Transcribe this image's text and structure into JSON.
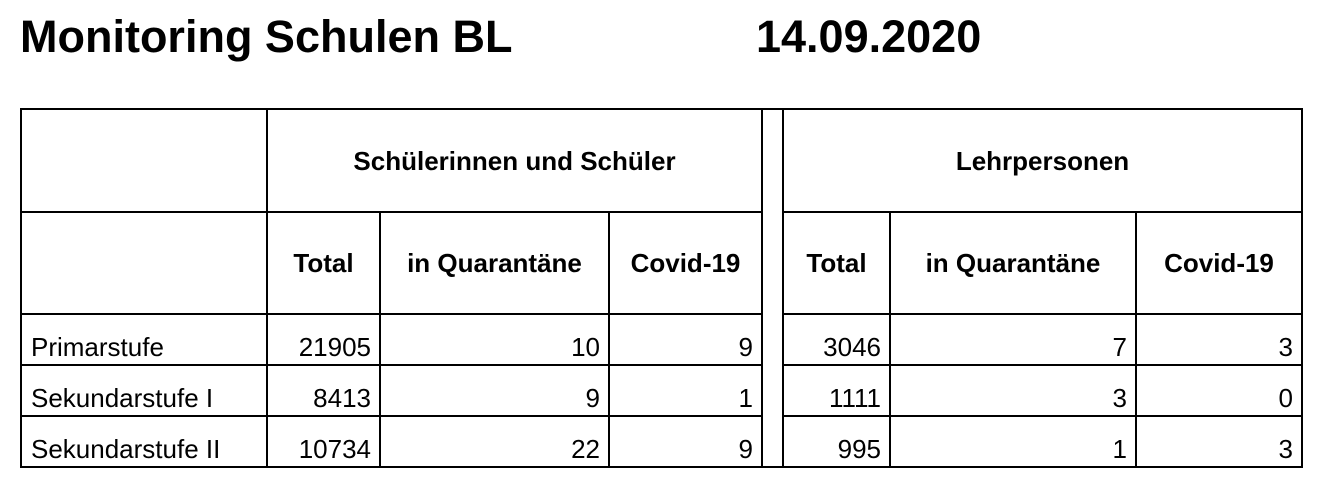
{
  "header": {
    "title": "Monitoring Schulen BL",
    "date": "14.09.2020"
  },
  "table": {
    "group_headers": {
      "students": "Schülerinnen und Schüler",
      "teachers": "Lehrpersonen"
    },
    "column_headers": {
      "students": [
        "Total",
        "in Quarantäne",
        "Covid-19"
      ],
      "teachers": [
        "Total",
        "in Quarantäne",
        "Covid-19"
      ]
    },
    "rows": [
      {
        "label": "Primarstufe",
        "students": [
          "21905",
          "10",
          "9"
        ],
        "teachers": [
          "3046",
          "7",
          "3"
        ]
      },
      {
        "label": "Sekundarstufe I",
        "students": [
          "8413",
          "9",
          "1"
        ],
        "teachers": [
          "1111",
          "3",
          "0"
        ]
      },
      {
        "label": "Sekundarstufe II",
        "students": [
          "10734",
          "22",
          "9"
        ],
        "teachers": [
          "995",
          "1",
          "3"
        ]
      }
    ]
  }
}
